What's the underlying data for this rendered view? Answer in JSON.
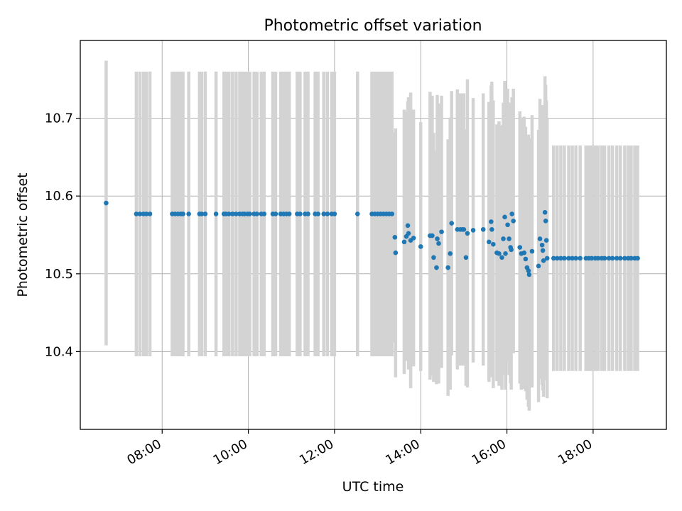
{
  "chart_data": {
    "type": "scatter",
    "title": "Photometric offset variation",
    "xlabel": "UTC time",
    "ylabel": "Photometric offset",
    "xlim": [
      "06:06",
      "19:42"
    ],
    "ylim": [
      10.3,
      10.8
    ],
    "grid": true,
    "x_ticks": [
      "08:00",
      "10:00",
      "12:00",
      "14:00",
      "16:00",
      "18:00"
    ],
    "y_ticks": [
      10.4,
      10.5,
      10.6,
      10.7
    ],
    "colors": {
      "point": "#1f77b4",
      "error_bar": "#d3d3d3",
      "grid": "#b0b0b0"
    },
    "points": [
      {
        "x": "06:42",
        "y": 10.591,
        "err": 0.183
      },
      {
        "x": "07:24",
        "y": 10.577,
        "err": 0.183
      },
      {
        "x": "07:29",
        "y": 10.577,
        "err": 0.183
      },
      {
        "x": "07:34",
        "y": 10.577,
        "err": 0.183
      },
      {
        "x": "07:38",
        "y": 10.577,
        "err": 0.183
      },
      {
        "x": "07:43",
        "y": 10.577,
        "err": 0.183
      },
      {
        "x": "08:14",
        "y": 10.577,
        "err": 0.183
      },
      {
        "x": "08:18",
        "y": 10.577,
        "err": 0.183
      },
      {
        "x": "08:22",
        "y": 10.577,
        "err": 0.183
      },
      {
        "x": "08:26",
        "y": 10.577,
        "err": 0.183
      },
      {
        "x": "08:29",
        "y": 10.577,
        "err": 0.183
      },
      {
        "x": "08:37",
        "y": 10.577,
        "err": 0.183
      },
      {
        "x": "08:52",
        "y": 10.577,
        "err": 0.183
      },
      {
        "x": "08:55",
        "y": 10.577,
        "err": 0.183
      },
      {
        "x": "09:00",
        "y": 10.577,
        "err": 0.183
      },
      {
        "x": "09:15",
        "y": 10.577,
        "err": 0.183
      },
      {
        "x": "09:26",
        "y": 10.577,
        "err": 0.183
      },
      {
        "x": "09:29",
        "y": 10.577,
        "err": 0.183
      },
      {
        "x": "09:33",
        "y": 10.577,
        "err": 0.183
      },
      {
        "x": "09:38",
        "y": 10.577,
        "err": 0.183
      },
      {
        "x": "09:43",
        "y": 10.577,
        "err": 0.183
      },
      {
        "x": "09:48",
        "y": 10.577,
        "err": 0.183
      },
      {
        "x": "09:52",
        "y": 10.577,
        "err": 0.183
      },
      {
        "x": "09:55",
        "y": 10.577,
        "err": 0.183
      },
      {
        "x": "09:59",
        "y": 10.577,
        "err": 0.183
      },
      {
        "x": "10:02",
        "y": 10.577,
        "err": 0.183
      },
      {
        "x": "10:08",
        "y": 10.577,
        "err": 0.183
      },
      {
        "x": "10:12",
        "y": 10.577,
        "err": 0.183
      },
      {
        "x": "10:18",
        "y": 10.577,
        "err": 0.183
      },
      {
        "x": "10:22",
        "y": 10.577,
        "err": 0.183
      },
      {
        "x": "10:34",
        "y": 10.577,
        "err": 0.183
      },
      {
        "x": "10:38",
        "y": 10.577,
        "err": 0.183
      },
      {
        "x": "10:45",
        "y": 10.577,
        "err": 0.183
      },
      {
        "x": "10:49",
        "y": 10.577,
        "err": 0.183
      },
      {
        "x": "10:53",
        "y": 10.577,
        "err": 0.183
      },
      {
        "x": "10:57",
        "y": 10.577,
        "err": 0.183
      },
      {
        "x": "11:08",
        "y": 10.577,
        "err": 0.183
      },
      {
        "x": "11:12",
        "y": 10.577,
        "err": 0.183
      },
      {
        "x": "11:19",
        "y": 10.577,
        "err": 0.183
      },
      {
        "x": "11:23",
        "y": 10.577,
        "err": 0.183
      },
      {
        "x": "11:33",
        "y": 10.577,
        "err": 0.183
      },
      {
        "x": "11:37",
        "y": 10.577,
        "err": 0.183
      },
      {
        "x": "11:45",
        "y": 10.577,
        "err": 0.183
      },
      {
        "x": "11:50",
        "y": 10.577,
        "err": 0.183
      },
      {
        "x": "11:56",
        "y": 10.577,
        "err": 0.183
      },
      {
        "x": "12:00",
        "y": 10.577,
        "err": 0.183
      },
      {
        "x": "12:32",
        "y": 10.577,
        "err": 0.183
      },
      {
        "x": "12:52",
        "y": 10.577,
        "err": 0.183
      },
      {
        "x": "12:56",
        "y": 10.577,
        "err": 0.183
      },
      {
        "x": "13:00",
        "y": 10.577,
        "err": 0.183
      },
      {
        "x": "13:04",
        "y": 10.577,
        "err": 0.183
      },
      {
        "x": "13:08",
        "y": 10.577,
        "err": 0.183
      },
      {
        "x": "13:12",
        "y": 10.577,
        "err": 0.183
      },
      {
        "x": "13:16",
        "y": 10.577,
        "err": 0.183
      },
      {
        "x": "13:20",
        "y": 10.577,
        "err": 0.183
      },
      {
        "x": "13:24",
        "y": 10.547,
        "err": 0.135
      },
      {
        "x": "13:25",
        "y": 10.527,
        "err": 0.16
      },
      {
        "x": "13:37",
        "y": 10.541,
        "err": 0.17
      },
      {
        "x": "13:40",
        "y": 10.548,
        "err": 0.16
      },
      {
        "x": "13:42",
        "y": 10.562,
        "err": 0.16
      },
      {
        "x": "13:43",
        "y": 10.552,
        "err": 0.175
      },
      {
        "x": "13:46",
        "y": 10.543,
        "err": 0.19
      },
      {
        "x": "13:50",
        "y": 10.546,
        "err": 0.165
      },
      {
        "x": "14:00",
        "y": 10.535,
        "err": 0.16
      },
      {
        "x": "14:13",
        "y": 10.549,
        "err": 0.185
      },
      {
        "x": "14:16",
        "y": 10.549,
        "err": 0.18
      },
      {
        "x": "14:18",
        "y": 10.521,
        "err": 0.16
      },
      {
        "x": "14:22",
        "y": 10.508,
        "err": 0.15
      },
      {
        "x": "14:23",
        "y": 10.545,
        "err": 0.185
      },
      {
        "x": "14:25",
        "y": 10.539,
        "err": 0.18
      },
      {
        "x": "14:29",
        "y": 10.554,
        "err": 0.175
      },
      {
        "x": "14:38",
        "y": 10.508,
        "err": 0.165
      },
      {
        "x": "14:41",
        "y": 10.526,
        "err": 0.175
      },
      {
        "x": "14:43",
        "y": 10.565,
        "err": 0.17
      },
      {
        "x": "14:51",
        "y": 10.557,
        "err": 0.18
      },
      {
        "x": "14:55",
        "y": 10.557,
        "err": 0.175
      },
      {
        "x": "14:58",
        "y": 10.557,
        "err": 0.175
      },
      {
        "x": "15:00",
        "y": 10.557,
        "err": 0.175
      },
      {
        "x": "15:03",
        "y": 10.521,
        "err": 0.165
      },
      {
        "x": "15:05",
        "y": 10.552,
        "err": 0.198
      },
      {
        "x": "15:13",
        "y": 10.556,
        "err": 0.17
      },
      {
        "x": "15:27",
        "y": 10.557,
        "err": 0.175
      },
      {
        "x": "15:35",
        "y": 10.541,
        "err": 0.18
      },
      {
        "x": "15:38",
        "y": 10.567,
        "err": 0.175
      },
      {
        "x": "15:39",
        "y": 10.557,
        "err": 0.19
      },
      {
        "x": "15:41",
        "y": 10.538,
        "err": 0.185
      },
      {
        "x": "15:46",
        "y": 10.527,
        "err": 0.165
      },
      {
        "x": "15:49",
        "y": 10.526,
        "err": 0.17
      },
      {
        "x": "15:53",
        "y": 10.521,
        "err": 0.17
      },
      {
        "x": "15:55",
        "y": 10.545,
        "err": 0.175
      },
      {
        "x": "15:57",
        "y": 10.573,
        "err": 0.175
      },
      {
        "x": "15:58",
        "y": 10.526,
        "err": 0.175
      },
      {
        "x": "16:01",
        "y": 10.563,
        "err": 0.175
      },
      {
        "x": "16:03",
        "y": 10.545,
        "err": 0.175
      },
      {
        "x": "16:05",
        "y": 10.534,
        "err": 0.175
      },
      {
        "x": "16:06",
        "y": 10.531,
        "err": 0.18
      },
      {
        "x": "16:07",
        "y": 10.577,
        "err": 0.15
      },
      {
        "x": "16:09",
        "y": 10.568,
        "err": 0.17
      },
      {
        "x": "16:18",
        "y": 10.534,
        "err": 0.175
      },
      {
        "x": "16:20",
        "y": 10.526,
        "err": 0.175
      },
      {
        "x": "16:24",
        "y": 10.527,
        "err": 0.175
      },
      {
        "x": "16:26",
        "y": 10.519,
        "err": 0.17
      },
      {
        "x": "16:28",
        "y": 10.508,
        "err": 0.17
      },
      {
        "x": "16:30",
        "y": 10.504,
        "err": 0.175
      },
      {
        "x": "16:31",
        "y": 10.499,
        "err": 0.175
      },
      {
        "x": "16:35",
        "y": 10.529,
        "err": 0.175
      },
      {
        "x": "16:44",
        "y": 10.51,
        "err": 0.175
      },
      {
        "x": "16:46",
        "y": 10.545,
        "err": 0.18
      },
      {
        "x": "16:49",
        "y": 10.537,
        "err": 0.18
      },
      {
        "x": "16:50",
        "y": 10.53,
        "err": 0.18
      },
      {
        "x": "16:51",
        "y": 10.517,
        "err": 0.175
      },
      {
        "x": "16:53",
        "y": 10.579,
        "err": 0.175
      },
      {
        "x": "16:54",
        "y": 10.568,
        "err": 0.175
      },
      {
        "x": "16:55",
        "y": 10.543,
        "err": 0.18
      },
      {
        "x": "16:56",
        "y": 10.52,
        "err": 0.18
      },
      {
        "x": "17:05",
        "y": 10.52,
        "err": 0.145
      },
      {
        "x": "17:10",
        "y": 10.52,
        "err": 0.145
      },
      {
        "x": "17:15",
        "y": 10.52,
        "err": 0.145
      },
      {
        "x": "17:20",
        "y": 10.52,
        "err": 0.145
      },
      {
        "x": "17:26",
        "y": 10.52,
        "err": 0.145
      },
      {
        "x": "17:31",
        "y": 10.52,
        "err": 0.145
      },
      {
        "x": "17:36",
        "y": 10.52,
        "err": 0.145
      },
      {
        "x": "17:42",
        "y": 10.52,
        "err": 0.145
      },
      {
        "x": "17:50",
        "y": 10.52,
        "err": 0.145
      },
      {
        "x": "17:54",
        "y": 10.52,
        "err": 0.145
      },
      {
        "x": "17:58",
        "y": 10.52,
        "err": 0.145
      },
      {
        "x": "18:03",
        "y": 10.52,
        "err": 0.145
      },
      {
        "x": "18:07",
        "y": 10.52,
        "err": 0.145
      },
      {
        "x": "18:12",
        "y": 10.52,
        "err": 0.145
      },
      {
        "x": "18:16",
        "y": 10.52,
        "err": 0.145
      },
      {
        "x": "18:22",
        "y": 10.52,
        "err": 0.145
      },
      {
        "x": "18:27",
        "y": 10.52,
        "err": 0.145
      },
      {
        "x": "18:33",
        "y": 10.52,
        "err": 0.145
      },
      {
        "x": "18:38",
        "y": 10.52,
        "err": 0.145
      },
      {
        "x": "18:44",
        "y": 10.52,
        "err": 0.145
      },
      {
        "x": "18:49",
        "y": 10.52,
        "err": 0.145
      },
      {
        "x": "18:53",
        "y": 10.52,
        "err": 0.145
      },
      {
        "x": "18:58",
        "y": 10.52,
        "err": 0.145
      },
      {
        "x": "19:02",
        "y": 10.52,
        "err": 0.145
      }
    ]
  }
}
